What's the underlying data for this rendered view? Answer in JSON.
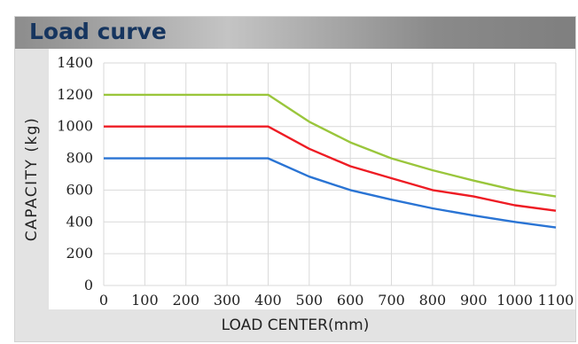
{
  "header": {
    "title": "Load curve"
  },
  "chart_data": {
    "type": "line",
    "title": "Load curve",
    "xlabel": "LOAD CENTER(mm)",
    "ylabel": "CAPACITY (kg)",
    "x": [
      0,
      100,
      200,
      300,
      400,
      500,
      600,
      700,
      800,
      900,
      1000,
      1100
    ],
    "xticks": [
      0,
      100,
      200,
      300,
      400,
      500,
      600,
      700,
      800,
      900,
      1000,
      1100
    ],
    "yticks": [
      0,
      200,
      400,
      600,
      800,
      1000,
      1200,
      1400
    ],
    "xlim": [
      0,
      1100
    ],
    "ylim": [
      0,
      1400
    ],
    "grid": true,
    "series": [
      {
        "color": "#9ac63c",
        "values": [
          1200,
          1200,
          1200,
          1200,
          1200,
          1030,
          900,
          800,
          725,
          660,
          600,
          560
        ]
      },
      {
        "color": "#ee1c24",
        "values": [
          1000,
          1000,
          1000,
          1000,
          1000,
          860,
          750,
          675,
          600,
          560,
          505,
          470
        ]
      },
      {
        "color": "#2a74d4",
        "values": [
          800,
          800,
          800,
          800,
          800,
          685,
          600,
          540,
          485,
          440,
          400,
          365
        ]
      }
    ]
  }
}
